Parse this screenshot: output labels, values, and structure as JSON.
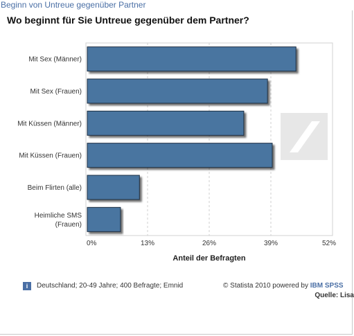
{
  "header": {
    "top_link": "Beginn von Untreue gegenüber Partner",
    "title": "Wo beginnt für Sie Untreue gegenüber dem Partner?"
  },
  "chart_data": {
    "type": "bar",
    "orientation": "horizontal",
    "title": "Wo beginnt für Sie Untreue gegenüber dem Partner?",
    "categories": [
      "Mit Sex (Männer)",
      "Mit Sex (Frauen)",
      "Mit Küssen (Männer)",
      "Mit Küssen (Frauen)",
      "Beim Flirten (alle)",
      "Heimliche SMS (Frauen)"
    ],
    "values": [
      44,
      38,
      33,
      39,
      11,
      7
    ],
    "xlabel": "Anteil der Befragten",
    "xlim": [
      0,
      52
    ],
    "ticks": [
      "0%",
      "13%",
      "26%",
      "39%",
      "52%"
    ],
    "grid": true,
    "bar_color": "#4a74a0"
  },
  "footer": {
    "info_icon": "i",
    "source_note": "Deutschland; 20-49 Jahre; 400 Befragte; Emnid",
    "copyright": "© Statista 2010 powered by",
    "brand": "IBM SPSS",
    "quelle": "Quelle: Lisa"
  }
}
